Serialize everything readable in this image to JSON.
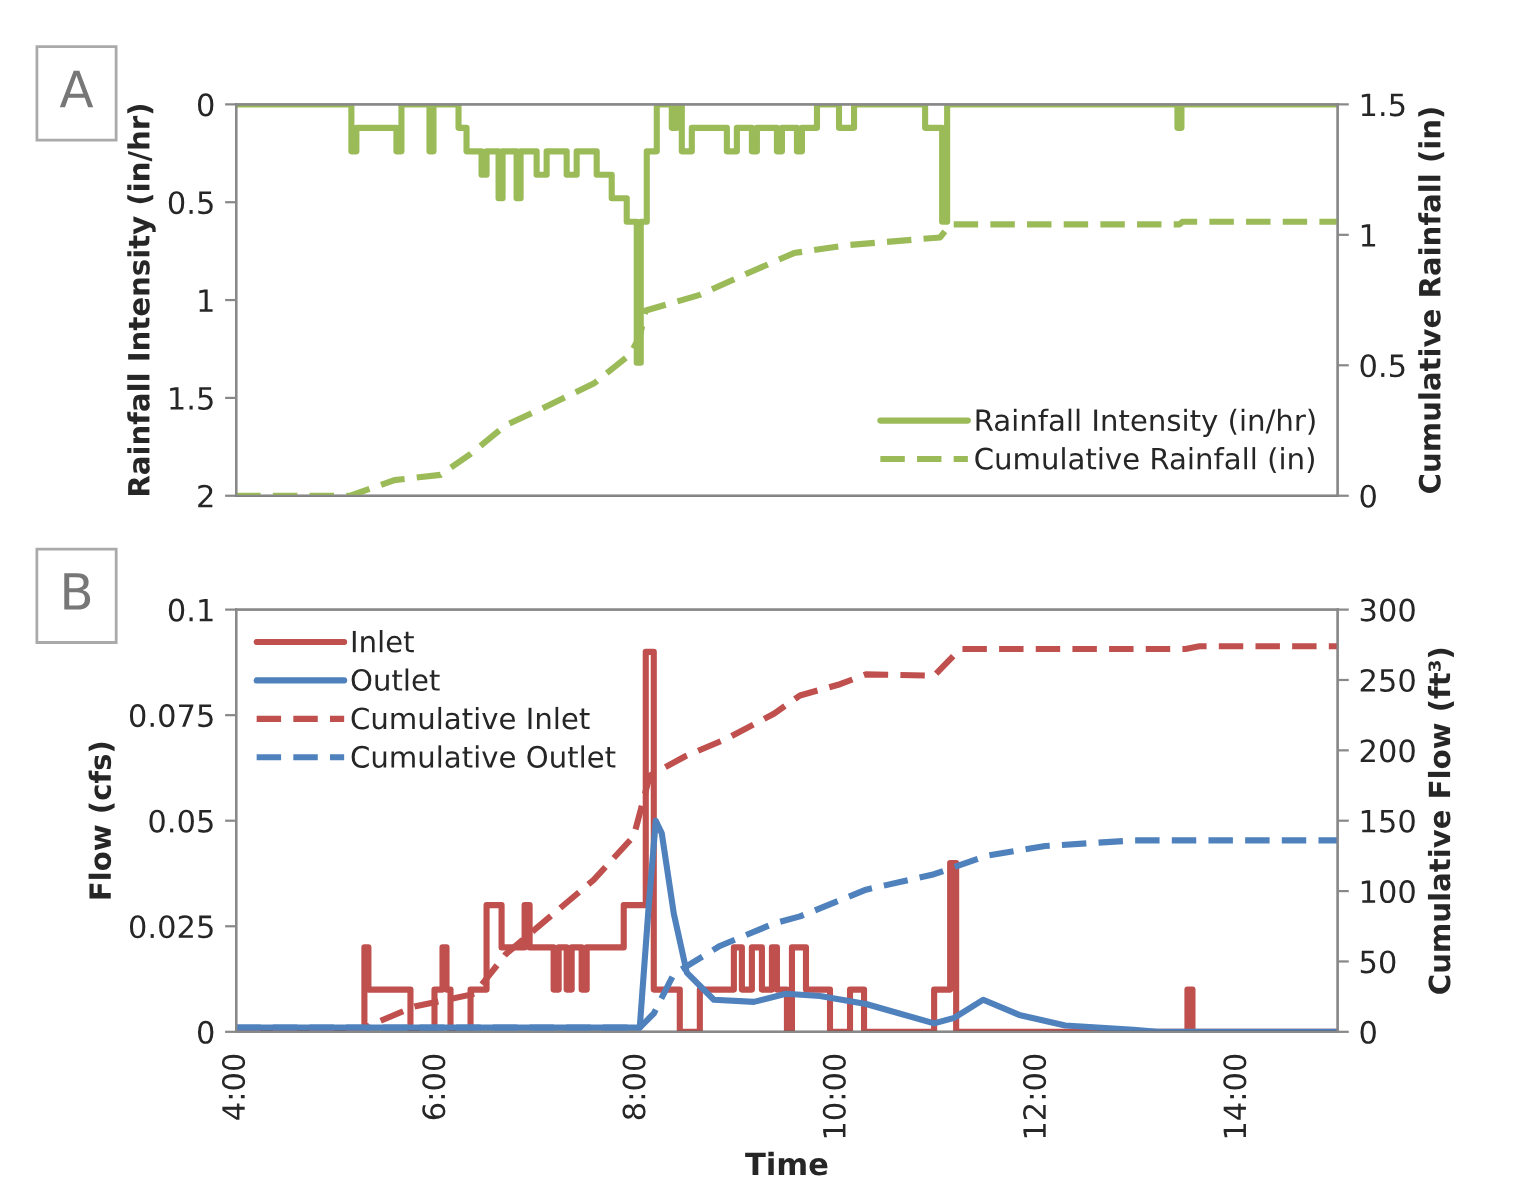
{
  "chart_data": [
    {
      "type": "line",
      "xlim": [
        4,
        15
      ],
      "ylim": [
        2,
        0
      ],
      "yticks": [
        0,
        0.5,
        1,
        1.5,
        2
      ],
      "ylabel": "Rainfall Intensity (in/hr)",
      "y2lim": [
        0,
        1.5
      ],
      "y2ticks": [
        0,
        0.5,
        1,
        1.5
      ],
      "y2label": "Cumulative Rainfall (in)",
      "tick_labels": "y",
      "legend": "bottom right",
      "grid": false,
      "annotations": [
        "A"
      ],
      "series": [
        {
          "name": "Rainfall Intensity (in/hr)",
          "type": "step",
          "color": "#9bbb59",
          "line_style": "solid",
          "x": [
            4.0,
            5.15,
            5.2,
            5.6,
            5.65,
            5.93,
            5.97,
            6.22,
            6.3,
            6.45,
            6.5,
            6.62,
            6.66,
            6.8,
            6.84,
            7.0,
            7.1,
            7.3,
            7.4,
            7.6,
            7.75,
            7.9,
            8.0,
            8.04,
            8.1,
            8.2,
            8.35,
            8.4,
            8.45,
            8.55,
            8.9,
            9.0,
            9.15,
            9.2,
            9.4,
            9.45,
            9.6,
            9.65,
            9.8,
            10.02,
            10.17,
            10.88,
            11.05,
            11.1,
            13.4,
            13.44,
            15.0
          ],
          "values": [
            0,
            0.24,
            0.12,
            0.24,
            0,
            0.24,
            0,
            0.12,
            0.24,
            0.36,
            0.24,
            0.48,
            0.24,
            0.48,
            0.24,
            0.36,
            0.24,
            0.36,
            0.24,
            0.36,
            0.48,
            0.6,
            1.32,
            0.6,
            0.24,
            0,
            0.12,
            0,
            0.24,
            0.12,
            0.24,
            0.12,
            0.24,
            0.12,
            0.24,
            0.12,
            0.24,
            0.12,
            0,
            0.12,
            0,
            0.12,
            0.6,
            0,
            0.12,
            0,
            0
          ]
        },
        {
          "name": "Cumulative Rainfall (in)",
          "axis": "y2",
          "color": "#9bbb59",
          "line_style": "dashed",
          "x": [
            4.0,
            5.14,
            5.58,
            6.04,
            6.34,
            6.69,
            7.03,
            7.57,
            7.93,
            8.03,
            8.09,
            8.63,
            9.09,
            9.57,
            10.09,
            11.03,
            11.13,
            13.42,
            13.45,
            15.0
          ],
          "values": [
            0,
            0,
            0.06,
            0.08,
            0.16,
            0.27,
            0.33,
            0.43,
            0.54,
            0.61,
            0.71,
            0.77,
            0.85,
            0.93,
            0.96,
            0.99,
            1.04,
            1.04,
            1.05,
            1.05
          ]
        }
      ]
    },
    {
      "type": "line",
      "xlim": [
        4,
        15
      ],
      "xticks": [
        {
          "value": 4,
          "label": "4:00"
        },
        {
          "value": 6,
          "label": "6:00"
        },
        {
          "value": 8,
          "label": "8:00"
        },
        {
          "value": 10,
          "label": "10:00"
        },
        {
          "value": 12,
          "label": "12:00"
        },
        {
          "value": 14,
          "label": "14:00"
        }
      ],
      "xlabel": "Time",
      "ylim": [
        0,
        0.1
      ],
      "yticks": [
        0,
        0.025,
        0.05,
        0.075,
        0.1
      ],
      "ylabel": "Flow (cfs)",
      "y2lim": [
        0,
        300
      ],
      "y2ticks": [
        0,
        50,
        100,
        150,
        200,
        250,
        300
      ],
      "y2label": "Cumulative Flow (ft³)",
      "legend": "top left",
      "grid": false,
      "annotations": [
        "B"
      ],
      "series": [
        {
          "name": "Inlet",
          "type": "step",
          "color": "#c0504d",
          "line_style": "solid",
          "x": [
            4.0,
            5.28,
            5.32,
            5.74,
            5.98,
            6.06,
            6.1,
            6.14,
            6.34,
            6.5,
            6.65,
            6.88,
            6.93,
            7.17,
            7.22,
            7.3,
            7.35,
            7.45,
            7.5,
            7.6,
            7.87,
            8.09,
            8.17,
            8.43,
            8.63,
            8.97,
            9.05,
            9.15,
            9.25,
            9.35,
            9.4,
            9.5,
            9.55,
            9.69,
            9.93,
            10.13,
            10.2,
            10.27,
            10.97,
            11.13,
            11.19,
            13.5,
            13.55,
            15.0
          ],
          "values": [
            0,
            0.02,
            0.01,
            0,
            0.01,
            0.02,
            0.01,
            0,
            0.01,
            0.03,
            0.02,
            0.03,
            0.02,
            0.01,
            0.02,
            0.01,
            0.02,
            0.01,
            0.02,
            0.02,
            0.03,
            0.09,
            0.01,
            0,
            0.01,
            0.02,
            0.01,
            0.02,
            0.01,
            0.02,
            0.01,
            0,
            0.02,
            0.01,
            0,
            0.01,
            0.01,
            0,
            0.01,
            0.04,
            0,
            0.01,
            0,
            0
          ]
        },
        {
          "name": "Outlet",
          "color": "#4f81bd",
          "line_style": "solid",
          "x": [
            4.0,
            8.03,
            8.12,
            8.19,
            8.25,
            8.37,
            8.5,
            8.77,
            9.17,
            9.49,
            9.83,
            10.29,
            10.97,
            11.17,
            11.46,
            11.82,
            12.28,
            12.96,
            13.2,
            15.0
          ],
          "values": [
            0.001,
            0.001,
            0.03,
            0.05,
            0.047,
            0.028,
            0.014,
            0.0076,
            0.0071,
            0.009,
            0.0085,
            0.0066,
            0.002,
            0.0033,
            0.0076,
            0.004,
            0.0015,
            0.0005,
            0,
            0
          ]
        },
        {
          "name": "Cumulative Inlet",
          "axis": "y2",
          "color": "#c0504d",
          "line_style": "dashed",
          "x": [
            4.0,
            5.18,
            5.78,
            6.38,
            6.69,
            7.17,
            7.57,
            7.97,
            8.13,
            8.49,
            8.89,
            9.37,
            9.63,
            10.03,
            10.29,
            10.97,
            11.23,
            13.48,
            13.62,
            15.0
          ],
          "values": [
            0,
            0,
            18,
            27,
            55,
            84,
            108,
            139,
            182,
            196,
            208,
            226,
            239,
            247,
            254,
            253,
            272,
            272,
            274,
            274
          ]
        },
        {
          "name": "Cumulative Outlet",
          "axis": "y2",
          "color": "#4f81bd",
          "line_style": "dashed",
          "x": [
            4.0,
            8.03,
            8.17,
            8.37,
            8.83,
            9.37,
            9.63,
            10.29,
            10.97,
            11.49,
            12.08,
            12.96,
            15.0
          ],
          "values": [
            3,
            3,
            13,
            41,
            61,
            77,
            82,
            101,
            112,
            125,
            132,
            136,
            136
          ]
        }
      ]
    }
  ]
}
